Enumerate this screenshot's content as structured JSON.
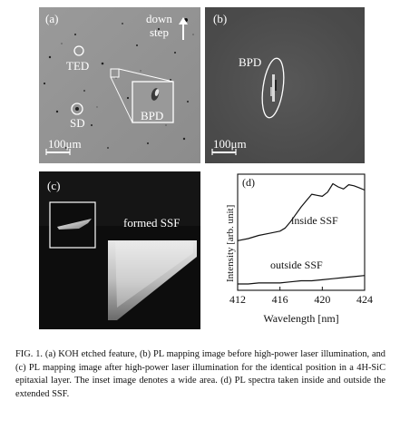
{
  "figure": {
    "panel_a": {
      "letter": "(a)",
      "direction_label_line1": "down",
      "direction_label_line2": "step",
      "labels": {
        "ted": "TED",
        "sd": "SD",
        "bpd": "BPD"
      },
      "scale_bar": "100μm"
    },
    "panel_b": {
      "letter": "(b)",
      "label": "BPD",
      "scale_bar": "100μm"
    },
    "panel_c": {
      "letter": "(c)",
      "label": "formed SSF"
    },
    "panel_d": {
      "letter": "(d)",
      "chart_data": {
        "type": "line",
        "xlabel": "Wavelength [nm]",
        "ylabel": "Intensity [arb. unit]",
        "xlim": [
          412,
          424
        ],
        "x_ticks": [
          "412",
          "416",
          "420",
          "424"
        ],
        "series": [
          {
            "name": "inside SSF",
            "x": [
              412,
              413,
              414,
              415,
              416,
              416.5,
              417,
              417.5,
              418,
              418.5,
              419,
              419.5,
              420,
              420.5,
              421,
              421.5,
              422,
              422.5,
              423,
              423.5,
              424
            ],
            "y": [
              0.42,
              0.44,
              0.47,
              0.49,
              0.51,
              0.54,
              0.6,
              0.67,
              0.74,
              0.8,
              0.86,
              0.85,
              0.84,
              0.88,
              0.96,
              0.93,
              0.91,
              0.95,
              0.94,
              0.92,
              0.9
            ]
          },
          {
            "name": "outside SSF",
            "x": [
              412,
              413,
              414,
              415,
              416,
              417,
              418,
              419,
              420,
              421,
              422,
              423,
              424
            ],
            "y": [
              0.01,
              0.01,
              0.02,
              0.02,
              0.02,
              0.03,
              0.04,
              0.04,
              0.05,
              0.06,
              0.07,
              0.08,
              0.09
            ]
          }
        ]
      }
    }
  },
  "caption": {
    "head": "FIG. 1.",
    "text": "(a) KOH etched feature, (b) PL mapping image before high-power laser illumination, and (c) PL mapping image after high-power laser illumination for the identical position in a 4H-SiC epitaxial layer. The inset image denotes a wide area. (d) PL spectra taken inside and outside the extended SSF."
  }
}
